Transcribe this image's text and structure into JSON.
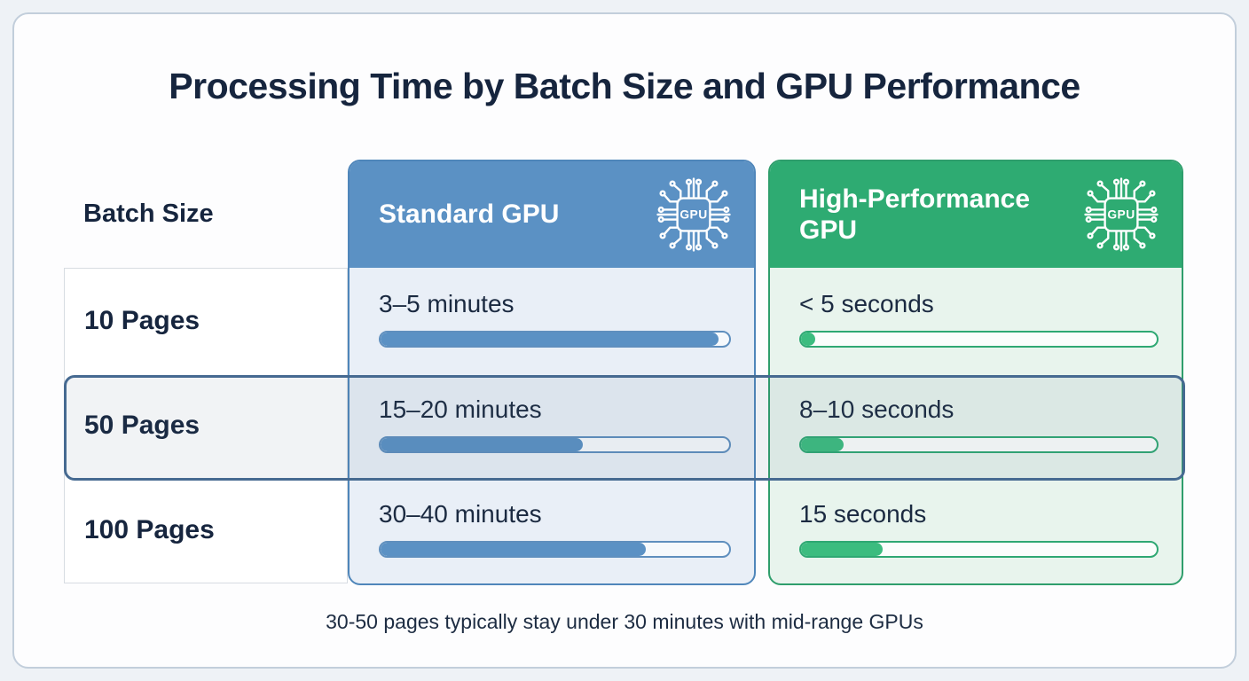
{
  "page": {
    "title": "Processing Time by Batch Size and GPU Performance",
    "footer_note": "30-50 pages typically stay under 30 minutes with mid-range GPUs"
  },
  "table": {
    "batch_column_header": "Batch Size",
    "columns": [
      {
        "key": "standard",
        "header": "Standard GPU",
        "icon": "gpu-chip-icon",
        "icon_text": "GPU",
        "accent_color": "#5b91c4",
        "body_color": "#e9eff7"
      },
      {
        "key": "high_performance",
        "header": "High-Performance GPU",
        "icon": "gpu-chip-icon",
        "icon_text": "GPU",
        "accent_color": "#2eab72",
        "body_color": "#e8f4ed"
      }
    ],
    "rows": [
      {
        "batch": "10 Pages",
        "standard_time": "3–5 minutes",
        "standard_fill_pct": 97,
        "hp_time": "< 5 seconds",
        "hp_fill_pct": 4,
        "highlighted": false
      },
      {
        "batch": "50 Pages",
        "standard_time": "15–20 minutes",
        "standard_fill_pct": 58,
        "hp_time": "8–10 seconds",
        "hp_fill_pct": 12,
        "highlighted": true
      },
      {
        "batch": "100 Pages",
        "standard_time": "30–40 minutes",
        "standard_fill_pct": 76,
        "hp_time": "15 seconds",
        "hp_fill_pct": 23,
        "highlighted": false
      }
    ],
    "highlight_border_color": "#466a91"
  },
  "chart_data": {
    "type": "table",
    "title": "Processing Time by Batch Size and GPU Performance",
    "categories": [
      "10 Pages",
      "50 Pages",
      "100 Pages"
    ],
    "series": [
      {
        "name": "Standard GPU",
        "labels": [
          "3–5 minutes",
          "15–20 minutes",
          "30–40 minutes"
        ],
        "bar_fill_percent": [
          97,
          58,
          76
        ],
        "color": "#5b91c4"
      },
      {
        "name": "High-Performance GPU",
        "labels": [
          "< 5 seconds",
          "8–10 seconds",
          "15 seconds"
        ],
        "bar_fill_percent": [
          4,
          12,
          23
        ],
        "color": "#3cbc7f"
      }
    ],
    "highlighted_row": "50 Pages",
    "annotation": "30-50 pages typically stay under 30 minutes with mid-range GPUs",
    "legend_position": "column-headers",
    "grid": false
  }
}
